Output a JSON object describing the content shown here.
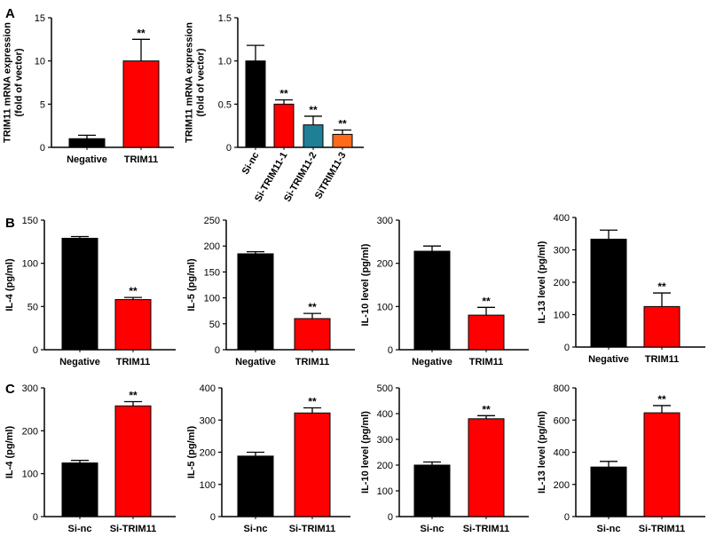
{
  "panel_letters": [
    "A",
    "B",
    "C"
  ],
  "colors": {
    "black": "#000000",
    "red": "#ff0000",
    "teal": "#1f7f95",
    "orange": "#ff6a1a"
  },
  "chart_data": [
    {
      "id": "A1",
      "type": "bar",
      "ylabel": [
        "TRIM11 mRNA expression",
        "(fold of vector)"
      ],
      "categories": [
        "Negative",
        "TRIM11"
      ],
      "values": [
        1.0,
        10.0
      ],
      "errors": [
        0.4,
        2.5
      ],
      "colors": [
        "#000000",
        "#ff0000"
      ],
      "sig": [
        "",
        "**"
      ],
      "ylim": [
        0,
        15
      ],
      "yticks": [
        0,
        5,
        10,
        15
      ],
      "rotate_labels": false
    },
    {
      "id": "A2",
      "type": "bar",
      "ylabel": [
        "TRIM11 mRNA expression",
        "(fold of vector)"
      ],
      "categories": [
        "Si-nc",
        "Si-TRIM11-1",
        "Si-TRIM11-2",
        "SiTRIM11-3"
      ],
      "values": [
        1.0,
        0.5,
        0.26,
        0.15
      ],
      "errors": [
        0.18,
        0.05,
        0.1,
        0.05
      ],
      "colors": [
        "#000000",
        "#ff0000",
        "#1f7f95",
        "#ff6a1a"
      ],
      "sig": [
        "",
        "**",
        "**",
        "**"
      ],
      "ylim": [
        0,
        1.5
      ],
      "yticks": [
        "0",
        "0.5",
        "1.0",
        "1.5"
      ],
      "ytick_values": [
        0,
        0.5,
        1.0,
        1.5
      ],
      "rotate_labels": true
    },
    {
      "id": "B1",
      "type": "bar",
      "ylabel": [
        "IL-4 (pg/ml)"
      ],
      "categories": [
        "Negative",
        "TRIM11"
      ],
      "values": [
        129,
        58
      ],
      "errors": [
        2,
        2.5
      ],
      "colors": [
        "#000000",
        "#ff0000"
      ],
      "sig": [
        "",
        "**"
      ],
      "ylim": [
        0,
        150
      ],
      "yticks": [
        0,
        50,
        100,
        150
      ],
      "rotate_labels": false
    },
    {
      "id": "B2",
      "type": "bar",
      "ylabel": [
        "IL-5 (pg/ml)"
      ],
      "categories": [
        "Negative",
        "TRIM11"
      ],
      "values": [
        185,
        60
      ],
      "errors": [
        4,
        10
      ],
      "colors": [
        "#000000",
        "#ff0000"
      ],
      "sig": [
        "",
        "**"
      ],
      "ylim": [
        0,
        250
      ],
      "yticks": [
        0,
        50,
        100,
        150,
        200,
        250
      ],
      "rotate_labels": false
    },
    {
      "id": "B3",
      "type": "bar",
      "ylabel": [
        "IL-10 level (pg/ml)"
      ],
      "categories": [
        "Negative",
        "TRIM11"
      ],
      "values": [
        228,
        80
      ],
      "errors": [
        12,
        18
      ],
      "colors": [
        "#000000",
        "#ff0000"
      ],
      "sig": [
        "",
        "**"
      ],
      "ylim": [
        0,
        300
      ],
      "yticks": [
        0,
        100,
        200,
        300
      ],
      "rotate_labels": false
    },
    {
      "id": "B4",
      "type": "bar",
      "ylabel": [
        "IL-13 level (pg/ml)"
      ],
      "categories": [
        "Negative",
        "TRIM11"
      ],
      "values": [
        333,
        125
      ],
      "errors": [
        28,
        42
      ],
      "colors": [
        "#000000",
        "#ff0000"
      ],
      "sig": [
        "",
        "**"
      ],
      "ylim": [
        0,
        400
      ],
      "yticks": [
        0,
        100,
        200,
        300,
        400
      ],
      "rotate_labels": false
    },
    {
      "id": "C1",
      "type": "bar",
      "ylabel": [
        "IL-4 (pg/ml)"
      ],
      "categories": [
        "Si-nc",
        "Si-TRIM11"
      ],
      "values": [
        125,
        258
      ],
      "errors": [
        6,
        10
      ],
      "colors": [
        "#000000",
        "#ff0000"
      ],
      "sig": [
        "",
        "**"
      ],
      "ylim": [
        0,
        300
      ],
      "yticks": [
        0,
        100,
        200,
        300
      ],
      "rotate_labels": false
    },
    {
      "id": "C2",
      "type": "bar",
      "ylabel": [
        "IL-5 (pg/ml)"
      ],
      "categories": [
        "Si-nc",
        "Si-TRIM11"
      ],
      "values": [
        188,
        322
      ],
      "errors": [
        12,
        16
      ],
      "colors": [
        "#000000",
        "#ff0000"
      ],
      "sig": [
        "",
        "**"
      ],
      "ylim": [
        0,
        400
      ],
      "yticks": [
        0,
        100,
        200,
        300,
        400
      ],
      "rotate_labels": false
    },
    {
      "id": "C3",
      "type": "bar",
      "ylabel": [
        "IL-10 level (pg/ml)"
      ],
      "categories": [
        "Si-nc",
        "Si-TRIM11"
      ],
      "values": [
        200,
        380
      ],
      "errors": [
        12,
        12
      ],
      "colors": [
        "#000000",
        "#ff0000"
      ],
      "sig": [
        "",
        "**"
      ],
      "ylim": [
        0,
        500
      ],
      "yticks": [
        0,
        100,
        200,
        300,
        400,
        500
      ],
      "rotate_labels": false
    },
    {
      "id": "C4",
      "type": "bar",
      "ylabel": [
        "IL-13 level (pg/ml)"
      ],
      "categories": [
        "Si-nc",
        "Si-TRIM11"
      ],
      "values": [
        308,
        645
      ],
      "errors": [
        35,
        45
      ],
      "colors": [
        "#000000",
        "#ff0000"
      ],
      "sig": [
        "",
        "**"
      ],
      "ylim": [
        0,
        800
      ],
      "yticks": [
        0,
        200,
        400,
        600,
        800
      ],
      "rotate_labels": false
    }
  ]
}
